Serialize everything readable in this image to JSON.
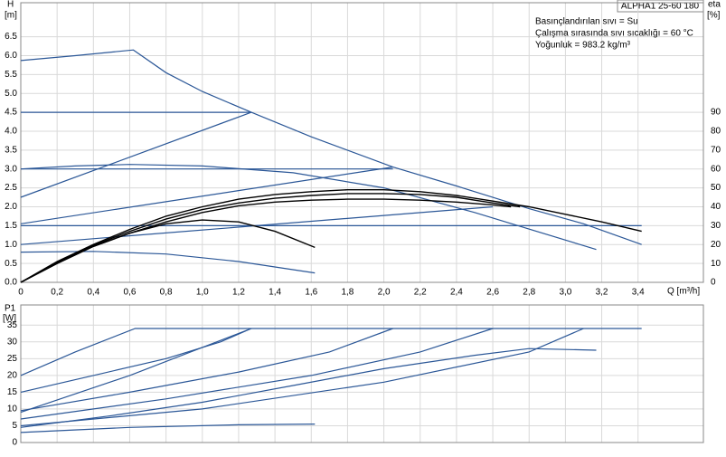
{
  "chart_data": [
    {
      "type": "line",
      "title": "ALPHA1 25-60 180",
      "ylabel": "H",
      "yunit": "[m]",
      "y2label": "eta",
      "y2unit": "[%]",
      "xlabel": "Q [m³/h]",
      "annotations": [
        "Basınçlandırılan sıvı = Su",
        "Çalışma sırasında sıvı sıcaklığı = 60 °C",
        "Yoğunluk = 983.2 kg/m³"
      ],
      "xlim": [
        0,
        3.76
      ],
      "ylim": [
        0,
        7.4
      ],
      "y2lim": [
        0,
        148
      ],
      "grid": true,
      "xticks": [
        0,
        {
          "value": 0.2,
          "label": "0,2"
        },
        {
          "value": 0.4,
          "label": "0,4"
        },
        {
          "value": 0.6,
          "label": "0,6"
        },
        {
          "value": 0.8,
          "label": "0,8"
        },
        {
          "value": 1.0,
          "label": "1,0"
        },
        {
          "value": 1.2,
          "label": "1,2"
        },
        {
          "value": 1.4,
          "label": "1,4"
        },
        {
          "value": 1.6,
          "label": "1,6"
        },
        {
          "value": 1.8,
          "label": "1,8"
        },
        {
          "value": 2.0,
          "label": "2,0"
        },
        {
          "value": 2.2,
          "label": "2,2"
        },
        {
          "value": 2.4,
          "label": "2,4"
        },
        {
          "value": 2.6,
          "label": "2,6"
        },
        {
          "value": 2.8,
          "label": "2,8"
        },
        {
          "value": 3.0,
          "label": "3,0"
        },
        {
          "value": 3.2,
          "label": "3,2"
        },
        {
          "value": 3.4,
          "label": "3,4"
        }
      ],
      "yticks": [
        {
          "value": 0,
          "label": "0.0"
        },
        0.5,
        {
          "value": 1,
          "label": "1.0"
        },
        1.5,
        {
          "value": 2,
          "label": "2.0"
        },
        2.5,
        {
          "value": 3,
          "label": "3.0"
        },
        3.5,
        {
          "value": 4,
          "label": "4.0"
        },
        4.5,
        {
          "value": 5,
          "label": "5.0"
        },
        5.5,
        {
          "value": 6,
          "label": "6.0"
        },
        6.5
      ],
      "y2ticks": [
        0,
        10,
        20,
        30,
        40,
        50,
        60,
        70,
        80,
        90
      ],
      "series": [
        {
          "color": "#2b5797",
          "x": [
            0,
            0.3,
            0.62,
            0.8,
            1.0,
            1.27,
            1.6,
            2.05,
            2.4,
            2.8,
            3.1,
            3.42
          ],
          "values": [
            5.87,
            6.0,
            6.15,
            5.55,
            5.05,
            4.5,
            3.85,
            3.05,
            2.55,
            1.95,
            1.55,
            1.0
          ]
        },
        {
          "color": "#2b5797",
          "x": [
            0,
            1.27
          ],
          "values": [
            4.5,
            4.5
          ]
        },
        {
          "color": "#2b5797",
          "x": [
            0,
            2.05
          ],
          "values": [
            3.0,
            3.0
          ]
        },
        {
          "color": "#2b5797",
          "x": [
            0,
            3.42
          ],
          "values": [
            1.5,
            1.5
          ]
        },
        {
          "color": "#2b5797",
          "x": [
            0,
            1.27
          ],
          "values": [
            2.25,
            4.5
          ]
        },
        {
          "color": "#2b5797",
          "x": [
            0,
            2.05
          ],
          "values": [
            1.55,
            3.05
          ]
        },
        {
          "color": "#2b5797",
          "x": [
            0,
            2.6
          ],
          "values": [
            1.0,
            2.0
          ]
        },
        {
          "color": "#2b5797",
          "x": [
            0,
            0.3,
            0.6,
            1.0,
            1.5,
            2.0,
            2.5,
            3.17
          ],
          "values": [
            3.0,
            3.08,
            3.12,
            3.08,
            2.9,
            2.5,
            1.85,
            0.87
          ]
        },
        {
          "color": "#2b5797",
          "x": [
            0,
            0.4,
            0.8,
            1.2,
            1.62
          ],
          "values": [
            0.8,
            0.82,
            0.75,
            0.55,
            0.25
          ]
        },
        {
          "color": "#000000",
          "axis": "y2",
          "x": [
            0,
            0.2,
            0.4,
            0.6,
            0.8,
            1.0,
            1.2,
            1.4,
            1.6,
            1.8,
            2.0,
            2.2,
            2.4,
            2.6,
            2.8,
            3.0,
            3.2,
            3.42
          ],
          "values": [
            0,
            11,
            20,
            28,
            35,
            40,
            44,
            46.5,
            48,
            49,
            49,
            48,
            46,
            43,
            40,
            36,
            32,
            27
          ]
        },
        {
          "color": "#000000",
          "axis": "y2",
          "x": [
            0,
            0.2,
            0.4,
            0.6,
            0.8,
            1.0,
            1.2,
            1.4,
            1.6,
            1.8,
            2.0,
            2.2,
            2.4,
            2.6,
            2.75
          ],
          "values": [
            0,
            10.5,
            19.5,
            27,
            33.5,
            38.5,
            42,
            44.5,
            46,
            47,
            47,
            46.5,
            45,
            42,
            40
          ]
        },
        {
          "color": "#000000",
          "axis": "y2",
          "x": [
            0,
            0.2,
            0.4,
            0.6,
            0.8,
            1.0,
            1.2,
            1.4,
            1.6,
            1.8,
            2.0,
            2.2,
            2.4,
            2.6,
            2.7
          ],
          "values": [
            0,
            10,
            19,
            26,
            32,
            37,
            40.5,
            42.5,
            43.5,
            44,
            44,
            43.5,
            42.5,
            41,
            40
          ]
        },
        {
          "color": "#000000",
          "axis": "y2",
          "x": [
            0,
            0.2,
            0.4,
            0.6,
            0.8,
            1.0,
            1.2,
            1.4,
            1.62
          ],
          "values": [
            0,
            10,
            19,
            26,
            31,
            33,
            32,
            27,
            18.5
          ]
        }
      ]
    },
    {
      "type": "line",
      "ylabel": "P1",
      "yunit": "[W]",
      "xlim": [
        0,
        3.76
      ],
      "ylim": [
        0,
        41
      ],
      "grid": true,
      "yticks": [
        0,
        5,
        10,
        15,
        20,
        25,
        30,
        35
      ],
      "series": [
        {
          "color": "#2b5797",
          "x": [
            0,
            0.3,
            0.63,
            3.42
          ],
          "values": [
            20,
            27,
            34,
            34
          ]
        },
        {
          "color": "#2b5797",
          "x": [
            0,
            0.4,
            0.8,
            1.1,
            1.27
          ],
          "values": [
            15,
            20,
            25,
            30,
            34
          ]
        },
        {
          "color": "#2b5797",
          "x": [
            0,
            0.6,
            1.2,
            1.7,
            2.05
          ],
          "values": [
            9.5,
            15,
            21,
            27,
            34
          ]
        },
        {
          "color": "#2b5797",
          "x": [
            0,
            0.8,
            1.6,
            2.2,
            2.6
          ],
          "values": [
            7,
            13,
            20,
            27,
            34
          ]
        },
        {
          "color": "#2b5797",
          "x": [
            0,
            1.0,
            2.0,
            2.8,
            3.1
          ],
          "values": [
            5,
            10,
            18,
            27,
            34
          ]
        },
        {
          "color": "#2b5797",
          "x": [
            0,
            0.5,
            1.0,
            1.5,
            2.0,
            2.5,
            2.8,
            3.17
          ],
          "values": [
            4.5,
            8,
            12,
            17,
            22,
            26,
            28,
            27.5
          ]
        },
        {
          "color": "#2b5797",
          "x": [
            0,
            0.6,
            1.27
          ],
          "values": [
            9,
            20,
            34
          ]
        },
        {
          "color": "#2b5797",
          "x": [
            0,
            0.6,
            1.2,
            1.62
          ],
          "values": [
            3,
            4.5,
            5.3,
            5.5
          ]
        }
      ]
    }
  ]
}
